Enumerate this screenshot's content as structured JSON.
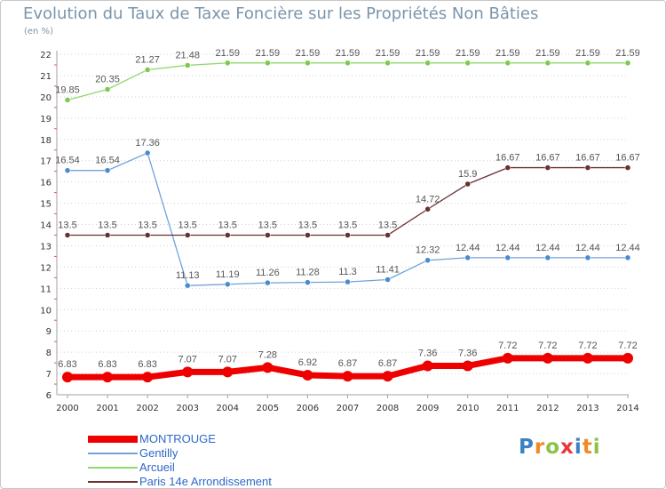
{
  "title": "Evolution du Taux de Taxe Foncière sur les Propriétés Non Bâties",
  "unit": "(en %)",
  "logo": {
    "text": "Proxiti",
    "letter_colors": [
      "#3b82c4",
      "#f08a24",
      "#8bc34a",
      "#e53935",
      "#3b82c4",
      "#f08a24",
      "#8bc34a"
    ]
  },
  "colors": {
    "axis": "#a0a0a0",
    "grid": "#d0d0d0",
    "tick_label": "#333333",
    "value_label": "#555555",
    "red_tick": "#e05050"
  },
  "chart_data": {
    "type": "line",
    "title": "Evolution du Taux de Taxe Foncière sur les Propriétés Non Bâties",
    "ylabel": "(en %)",
    "xlabel": "",
    "ylim": [
      6,
      22
    ],
    "yticks": [
      6,
      7,
      8,
      9,
      10,
      11,
      12,
      13,
      14,
      15,
      16,
      17,
      18,
      19,
      20,
      21,
      22
    ],
    "x": [
      "2000",
      "2001",
      "2002",
      "2003",
      "2004",
      "2005",
      "2006",
      "2007",
      "2008",
      "2009",
      "2010",
      "2011",
      "2012",
      "2013",
      "2014"
    ],
    "grid": true,
    "legend_position": "bottom-left",
    "series": [
      {
        "name": "Arcueil",
        "color": "#8ed86e",
        "marker": "#7cc94e",
        "bold": false,
        "values": [
          19.85,
          20.35,
          21.27,
          21.48,
          21.59,
          21.59,
          21.59,
          21.59,
          21.59,
          21.59,
          21.59,
          21.59,
          21.59,
          21.59,
          21.59
        ],
        "labels": [
          "19.85",
          "20.35",
          "21.27",
          "21.48",
          "21.59",
          "21.59",
          "21.59",
          "21.59",
          "21.59",
          "21.59",
          "21.59",
          "21.59",
          "21.59",
          "21.59",
          "21.59"
        ]
      },
      {
        "name": "Gentilly",
        "color": "#6fa3d9",
        "marker": "#4a8bd0",
        "bold": false,
        "values": [
          16.54,
          16.54,
          17.36,
          11.13,
          11.19,
          11.26,
          11.28,
          11.3,
          11.41,
          12.32,
          12.44,
          12.44,
          12.44,
          12.44,
          12.44
        ],
        "labels": [
          "16.54",
          "16.54",
          "17.36",
          "11.13",
          "11.19",
          "11.26",
          "11.28",
          "11.3",
          "11.41",
          "12.32",
          "12.44",
          "12.44",
          "12.44",
          "12.44",
          "12.44"
        ]
      },
      {
        "name": "Paris 14e  Arrondissement",
        "color": "#6b2f2f",
        "marker": "#6b2f2f",
        "bold": false,
        "values": [
          13.5,
          13.5,
          13.5,
          13.5,
          13.5,
          13.5,
          13.5,
          13.5,
          13.5,
          14.72,
          15.9,
          16.67,
          16.67,
          16.67,
          16.67
        ],
        "labels": [
          "13.5",
          "13.5",
          "13.5",
          "13.5",
          "13.5",
          "13.5",
          "13.5",
          "13.5",
          "13.5",
          "14.72",
          "15.9",
          "16.67",
          "16.67",
          "16.67",
          "16.67"
        ]
      },
      {
        "name": "MONTROUGE",
        "color": "#ee0000",
        "marker": "#ee0000",
        "bold": true,
        "values": [
          6.83,
          6.83,
          6.83,
          7.07,
          7.07,
          7.28,
          6.92,
          6.87,
          6.87,
          7.36,
          7.36,
          7.72,
          7.72,
          7.72,
          7.72
        ],
        "labels": [
          "6.83",
          "6.83",
          "6.83",
          "7.07",
          "7.07",
          "7.28",
          "6.92",
          "6.87",
          "6.87",
          "7.36",
          "7.36",
          "7.72",
          "7.72",
          "7.72",
          "7.72"
        ]
      }
    ],
    "legend_order": [
      "MONTROUGE",
      "Gentilly",
      "Arcueil",
      "Paris 14e  Arrondissement"
    ]
  }
}
